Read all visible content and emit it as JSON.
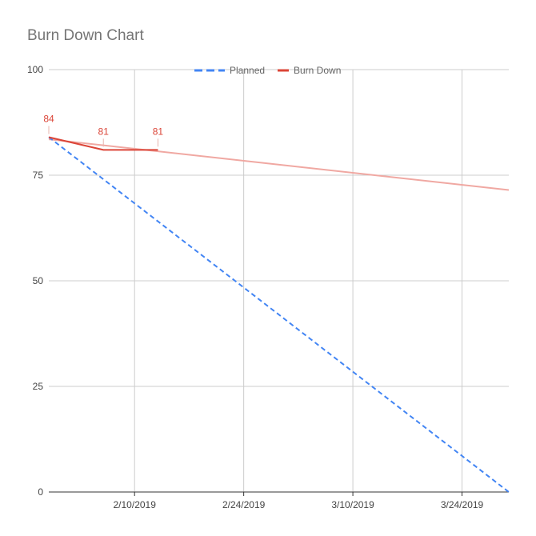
{
  "chart_data": {
    "type": "line",
    "title": "Burn Down Chart",
    "xlabel": "",
    "ylabel": "",
    "x_ticks": [
      "2/10/2019",
      "2/24/2019",
      "3/10/2019",
      "3/24/2019"
    ],
    "y_ticks": [
      "0",
      "25",
      "50",
      "75",
      "100"
    ],
    "xlim": [
      "2019-01-30",
      "2019-03-30"
    ],
    "ylim": [
      0,
      100
    ],
    "grid": true,
    "legend_position": "top",
    "series": [
      {
        "name": "Planned",
        "color": "#4285f4",
        "style": "dashed",
        "points": [
          {
            "x": "2019-01-30",
            "y": 84
          },
          {
            "x": "2019-03-30",
            "y": 0
          }
        ]
      },
      {
        "name": "Burn Down",
        "color": "#db4437",
        "style": "solid",
        "points": [
          {
            "x": "2019-01-30",
            "y": 84,
            "label": "84"
          },
          {
            "x": "2019-02-06",
            "y": 81,
            "label": "81"
          },
          {
            "x": "2019-02-13",
            "y": 81,
            "label": "81"
          }
        ],
        "trendline": {
          "color": "#f0a8a2",
          "points": [
            {
              "x": "2019-01-30",
              "y": 83.5
            },
            {
              "x": "2019-03-30",
              "y": 71.5
            }
          ]
        }
      }
    ]
  }
}
